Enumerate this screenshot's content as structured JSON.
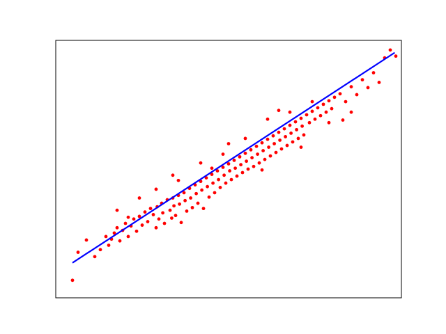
{
  "chart_data": {
    "type": "scatter",
    "title": "",
    "xlabel": "",
    "ylabel": "",
    "xlim": [
      -3.1,
      3.1
    ],
    "ylim": [
      -7.6,
      7.1
    ],
    "grid": false,
    "ticks": false,
    "series": [
      {
        "kind": "scatter",
        "color": "#ff0000",
        "points": [
          [
            -2.8,
            -6.6
          ],
          [
            -2.7,
            -5.0
          ],
          [
            -2.55,
            -4.3
          ],
          [
            -2.4,
            -5.25
          ],
          [
            -2.3,
            -4.85
          ],
          [
            -2.2,
            -4.1
          ],
          [
            -2.15,
            -4.6
          ],
          [
            -2.1,
            -4.25
          ],
          [
            -2.05,
            -3.9
          ],
          [
            -2.0,
            -3.6
          ],
          [
            -1.95,
            -4.35
          ],
          [
            -1.9,
            -3.75
          ],
          [
            -1.85,
            -3.35
          ],
          [
            -1.8,
            -4.1
          ],
          [
            -1.75,
            -3.5
          ],
          [
            -1.7,
            -3.1
          ],
          [
            -1.65,
            -3.8
          ],
          [
            -1.6,
            -2.95
          ],
          [
            -1.55,
            -3.45
          ],
          [
            -1.5,
            -2.7
          ],
          [
            -1.45,
            -3.25
          ],
          [
            -1.4,
            -2.5
          ],
          [
            -1.35,
            -2.85
          ],
          [
            -1.3,
            -3.6
          ],
          [
            -1.28,
            -2.4
          ],
          [
            -1.25,
            -3.1
          ],
          [
            -1.2,
            -2.2
          ],
          [
            -1.18,
            -2.75
          ],
          [
            -1.15,
            -3.35
          ],
          [
            -1.1,
            -2.0
          ],
          [
            -1.05,
            -2.6
          ],
          [
            -1.02,
            -3.05
          ],
          [
            -1.0,
            -1.9
          ],
          [
            -0.98,
            -2.35
          ],
          [
            -0.95,
            -2.9
          ],
          [
            -0.9,
            -1.75
          ],
          [
            -0.88,
            -2.25
          ],
          [
            -0.85,
            -3.3
          ],
          [
            -0.8,
            -1.6
          ],
          [
            -0.78,
            -2.05
          ],
          [
            -0.75,
            -2.65
          ],
          [
            -0.7,
            -1.35
          ],
          [
            -0.68,
            -1.9
          ],
          [
            -0.65,
            -2.45
          ],
          [
            -0.6,
            -1.15
          ],
          [
            -0.58,
            -1.65
          ],
          [
            -0.55,
            -2.2
          ],
          [
            -0.5,
            -0.95
          ],
          [
            -0.48,
            -1.45
          ],
          [
            -0.45,
            -2.5
          ],
          [
            -0.4,
            -0.75
          ],
          [
            -0.38,
            -1.25
          ],
          [
            -0.35,
            -1.85
          ],
          [
            -0.3,
            -0.55
          ],
          [
            -0.28,
            -1.05
          ],
          [
            -0.25,
            -1.6
          ],
          [
            -0.2,
            -0.35
          ],
          [
            -0.18,
            -0.85
          ],
          [
            -0.15,
            -1.3
          ],
          [
            -0.1,
            -0.15
          ],
          [
            -0.08,
            -0.6
          ],
          [
            -0.05,
            -1.05
          ],
          [
            0.0,
            0.05
          ],
          [
            0.02,
            -0.35
          ],
          [
            0.05,
            -0.85
          ],
          [
            0.1,
            0.25
          ],
          [
            0.12,
            -0.2
          ],
          [
            0.15,
            -0.65
          ],
          [
            0.2,
            0.45
          ],
          [
            0.22,
            0.0
          ],
          [
            0.25,
            -0.45
          ],
          [
            0.3,
            0.65
          ],
          [
            0.32,
            0.2
          ],
          [
            0.35,
            -0.25
          ],
          [
            0.4,
            0.85
          ],
          [
            0.42,
            0.4
          ],
          [
            0.45,
            -0.1
          ],
          [
            0.5,
            1.05
          ],
          [
            0.52,
            0.6
          ],
          [
            0.55,
            0.1
          ],
          [
            0.6,
            1.25
          ],
          [
            0.62,
            0.8
          ],
          [
            0.65,
            0.3
          ],
          [
            0.7,
            1.45
          ],
          [
            0.72,
            1.0
          ],
          [
            0.75,
            0.5
          ],
          [
            0.8,
            1.65
          ],
          [
            0.82,
            1.2
          ],
          [
            0.85,
            0.7
          ],
          [
            0.9,
            1.85
          ],
          [
            0.92,
            1.4
          ],
          [
            0.95,
            0.9
          ],
          [
            1.0,
            2.05
          ],
          [
            1.02,
            1.6
          ],
          [
            1.05,
            1.1
          ],
          [
            1.1,
            2.25
          ],
          [
            1.12,
            1.8
          ],
          [
            1.15,
            1.3
          ],
          [
            1.2,
            2.45
          ],
          [
            1.22,
            2.0
          ],
          [
            1.25,
            1.5
          ],
          [
            1.3,
            2.65
          ],
          [
            1.32,
            2.2
          ],
          [
            1.35,
            1.7
          ],
          [
            1.4,
            2.85
          ],
          [
            1.45,
            2.4
          ],
          [
            1.5,
            3.05
          ],
          [
            1.55,
            2.6
          ],
          [
            1.6,
            3.25
          ],
          [
            1.65,
            2.8
          ],
          [
            1.7,
            3.45
          ],
          [
            1.75,
            3.0
          ],
          [
            1.8,
            3.65
          ],
          [
            1.85,
            3.2
          ],
          [
            1.9,
            3.85
          ],
          [
            2.0,
            4.05
          ],
          [
            2.1,
            3.6
          ],
          [
            2.2,
            4.45
          ],
          [
            2.3,
            4.0
          ],
          [
            2.4,
            4.85
          ],
          [
            2.5,
            4.4
          ],
          [
            2.6,
            5.25
          ],
          [
            2.7,
            4.7
          ],
          [
            2.8,
            6.1
          ],
          [
            2.9,
            6.55
          ],
          [
            3.0,
            6.2
          ],
          [
            -1.6,
            -1.9
          ],
          [
            -1.3,
            -1.4
          ],
          [
            -0.9,
            -0.9
          ],
          [
            -0.5,
            0.1
          ],
          [
            -0.1,
            0.6
          ],
          [
            0.3,
            1.5
          ],
          [
            0.7,
            2.6
          ],
          [
            1.1,
            3.0
          ],
          [
            1.5,
            3.6
          ],
          [
            -2.0,
            -2.6
          ],
          [
            -1.0,
            -0.6
          ],
          [
            0.0,
            1.2
          ],
          [
            0.9,
            3.1
          ],
          [
            1.8,
            2.4
          ],
          [
            2.2,
            3.0
          ],
          [
            -1.8,
            -3.0
          ],
          [
            -0.3,
            -0.2
          ],
          [
            0.6,
            -0.3
          ],
          [
            1.3,
            1.0
          ],
          [
            2.05,
            2.55
          ]
        ]
      },
      {
        "kind": "line",
        "color": "#0000ff",
        "x": [
          -2.8,
          2.98
        ],
        "y": [
          -5.6,
          6.4
        ]
      }
    ]
  }
}
